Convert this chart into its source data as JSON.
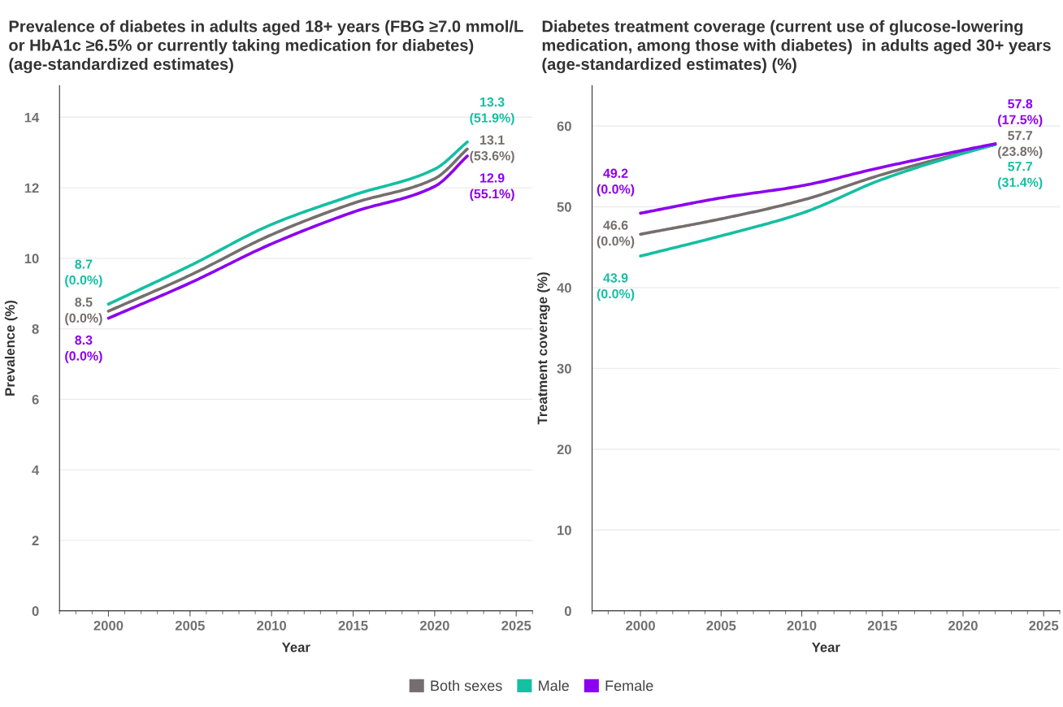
{
  "chart_data": [
    {
      "type": "line",
      "title": "Prevalence of diabetes in adults aged 18+ years (FBG ≥7.0 mmol/L\nor HbA1c ≥6.5% or currently taking medication for diabetes)\n(age-standardized estimates)",
      "xlabel": "Year",
      "ylabel": "Prevalence (%)",
      "x": [
        2000,
        2005,
        2010,
        2015,
        2020,
        2022
      ],
      "series": [
        {
          "name": "Both sexes",
          "color": "#766e6e",
          "values": [
            8.5,
            9.52,
            10.67,
            11.56,
            12.26,
            13.1
          ],
          "value_labels": [
            "8.5\n(0.0%)",
            null,
            null,
            null,
            null,
            "13.1\n(53.6%)"
          ]
        },
        {
          "name": "Male",
          "color": "#14bfa2",
          "values": [
            8.7,
            9.79,
            10.96,
            11.79,
            12.53,
            13.3
          ],
          "value_labels": [
            "8.7\n(0.0%)",
            null,
            null,
            null,
            null,
            "13.3\n(51.9%)"
          ]
        },
        {
          "name": "Female",
          "color": "#8c00f0",
          "values": [
            8.3,
            9.3,
            10.41,
            11.31,
            12.04,
            12.9
          ],
          "value_labels": [
            "8.3\n(0.0%)",
            null,
            null,
            null,
            null,
            "12.9\n(55.1%)"
          ]
        }
      ],
      "xlim": [
        1997,
        2026
      ],
      "xticks": [
        2000,
        2005,
        2010,
        2015,
        2020,
        2025
      ],
      "ylim": [
        0,
        14.9
      ],
      "yticks": [
        0,
        2,
        4,
        6,
        8,
        10,
        12,
        14
      ],
      "grid": "y",
      "legend": "bottom",
      "marker": "none",
      "line_style": "solid"
    },
    {
      "type": "line",
      "title": "Diabetes treatment coverage (current use of glucose-lowering\nmedication, among those with diabetes)  in adults aged 30+ years\n(age-standardized estimates) (%)",
      "xlabel": "Year",
      "ylabel": "Treatment coverage (%)",
      "x": [
        2000,
        2005,
        2010,
        2015,
        2020,
        2022
      ],
      "series": [
        {
          "color": "#766e6e",
          "values": [
            46.6,
            48.5,
            50.8,
            54.0,
            56.7,
            57.7
          ],
          "value_labels": [
            "46.6\n(0.0%)",
            null,
            null,
            null,
            null,
            "57.7\n(23.8%)"
          ]
        },
        {
          "color": "#14bfa2",
          "values": [
            43.9,
            46.4,
            49.2,
            53.4,
            56.6,
            57.7
          ],
          "value_labels": [
            "43.9\n(0.0%)",
            null,
            null,
            null,
            null,
            "57.7\n(31.4%)"
          ]
        },
        {
          "color": "#8c00f0",
          "values": [
            49.2,
            51.1,
            52.6,
            54.9,
            57.0,
            57.8
          ],
          "value_labels": [
            "49.2\n(0.0%)",
            null,
            null,
            null,
            null,
            "57.8\n(17.5%)"
          ]
        }
      ],
      "xlim": [
        1997,
        2026
      ],
      "xticks": [
        2000,
        2005,
        2010,
        2015,
        2020,
        2025
      ],
      "ylim": [
        0,
        65
      ],
      "yticks": [
        0,
        10,
        20,
        30,
        40,
        50,
        60
      ],
      "grid": "y",
      "marker": "none",
      "line_style": "solid"
    }
  ]
}
